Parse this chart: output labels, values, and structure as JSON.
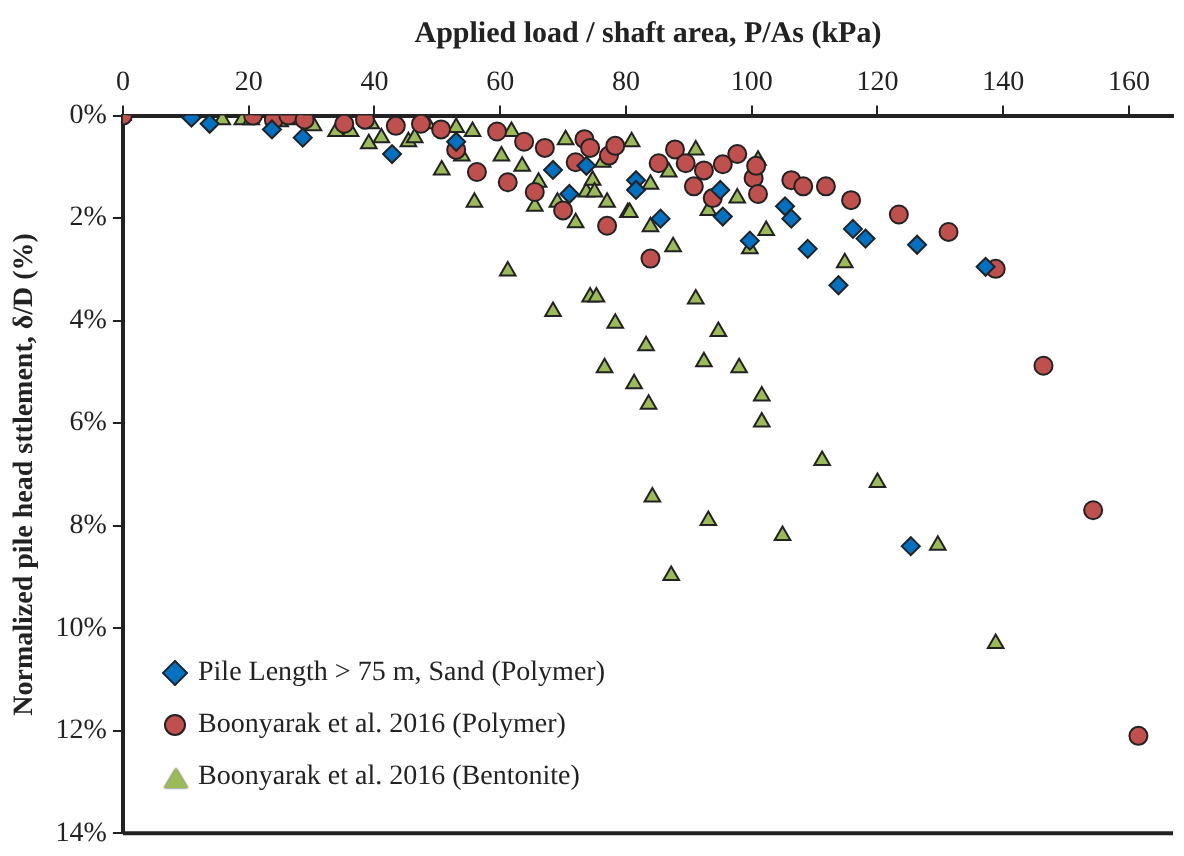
{
  "chart_data": {
    "type": "scatter",
    "xlabel": "Applied load / shaft area, P/As (kPa)",
    "ylabel": "Normalized pile head sttlement, δ/D (%)",
    "xlim": [
      0,
      167
    ],
    "xticks": [
      0,
      20,
      40,
      60,
      80,
      100,
      120,
      140,
      160
    ],
    "ylim": [
      14,
      0
    ],
    "yticks": [
      {
        "value": 0,
        "label": "0%"
      },
      {
        "value": 2,
        "label": "2%"
      },
      {
        "value": 4,
        "label": "4%"
      },
      {
        "value": 6,
        "label": "6%"
      },
      {
        "value": 8,
        "label": "8%"
      },
      {
        "value": 10,
        "label": "10%"
      },
      {
        "value": 12,
        "label": "12%"
      },
      {
        "value": 14,
        "label": "14%"
      }
    ],
    "grid": false,
    "legend": "bottom left",
    "series": [
      {
        "name": "Pile Length > 75 m, Sand (Polymer)",
        "color": "#0070c0",
        "marker": "diamond",
        "x": [
          10.9,
          13.8,
          23.7,
          28.6,
          42.8,
          53,
          68.4,
          71,
          73.7,
          81.6,
          81.6,
          85.5,
          95,
          95.4,
          99.7,
          105.3,
          106.3,
          108.9,
          113.8,
          116.1,
          118.1,
          126.3,
          137.2,
          125.3
        ],
        "values": [
          0.04,
          0.16,
          0.27,
          0.43,
          0.75,
          0.51,
          1.06,
          1.53,
          0.98,
          1.26,
          1.45,
          2.01,
          1.45,
          1.97,
          2.44,
          1.77,
          2.01,
          2.6,
          3.31,
          2.21,
          2.4,
          2.52,
          2.95,
          8.4
        ]
      },
      {
        "name": "Boonyarak et al. 2016 (Polymer)",
        "color": "#c0504d",
        "marker": "circle",
        "x": [
          0,
          20.7,
          24,
          26.3,
          28.9,
          35.2,
          38.5,
          43.4,
          47.4,
          50.6,
          53,
          56.3,
          59.5,
          61.2,
          63.8,
          65.5,
          67.1,
          70,
          72,
          73.4,
          74.3,
          77,
          77.3,
          78.3,
          83.9,
          85.2,
          87.8,
          89.5,
          90.8,
          92.4,
          93.8,
          95.4,
          97.7,
          100.3,
          100.7,
          101,
          106.3,
          108.2,
          111.8,
          115.8,
          123.4,
          131.3,
          138.8,
          146.4,
          154.3,
          161.5
        ],
        "values": [
          0,
          0,
          0.08,
          0,
          0.08,
          0.16,
          0.08,
          0.2,
          0.16,
          0.27,
          0.67,
          1.1,
          0.31,
          1.3,
          0.51,
          1.49,
          0.63,
          1.85,
          0.91,
          0.46,
          0.63,
          2.15,
          0.78,
          0.59,
          2.79,
          0.93,
          0.66,
          0.93,
          1.38,
          1.07,
          1.61,
          0.95,
          0.75,
          1.22,
          0.98,
          1.53,
          1.26,
          1.38,
          1.38,
          1.65,
          1.93,
          2.27,
          2.99,
          4.88,
          7.7,
          12.1
        ]
      },
      {
        "name": "Boonyarak et al. 2016 (Bentonite)",
        "color": "#9bbb59",
        "marker": "triangle",
        "x": [
          0,
          15.8,
          19,
          20.4,
          25,
          28.3,
          30.3,
          33.9,
          36.2,
          39.1,
          39.5,
          41.1,
          45.4,
          46.4,
          48.4,
          50.7,
          53,
          53.9,
          55.6,
          55.9,
          60.2,
          61.2,
          61.8,
          63.5,
          65.5,
          66.1,
          68.4,
          69.1,
          70.4,
          72,
          73.7,
          74.3,
          74.7,
          75,
          75.3,
          76.3,
          76.6,
          77,
          78.3,
          80.3,
          80.6,
          80.9,
          81.3,
          83.2,
          83.6,
          83.9,
          83.9,
          84.2,
          86.8,
          87.2,
          87.5,
          91.1,
          91.1,
          92.4,
          93.1,
          93.1,
          94.7,
          97.7,
          98,
          99.7,
          101,
          101.6,
          101.6,
          102.3,
          104.9,
          111.2,
          114.8,
          120,
          129.6,
          138.8
        ],
        "values": [
          0,
          0.08,
          0.08,
          0.08,
          0.12,
          0.08,
          0.2,
          0.31,
          0.31,
          0.55,
          0.16,
          0.43,
          0.51,
          0.43,
          0.16,
          1.06,
          0.23,
          0.79,
          0.31,
          1.69,
          0.79,
          3.03,
          0.31,
          0.99,
          1.77,
          1.3,
          3.82,
          1.69,
          0.47,
          2.09,
          1.49,
          3.54,
          1.26,
          1.49,
          3.54,
          0.91,
          4.92,
          1.69,
          4.05,
          1.89,
          1.89,
          0.51,
          5.23,
          4.49,
          5.63,
          2.17,
          1.34,
          7.44,
          1.1,
          8.97,
          2.56,
          0.67,
          3.58,
          4.8,
          1.85,
          7.9,
          4.21,
          1.61,
          4.92,
          2.6,
          0.87,
          5.47,
          5.98,
          2.24,
          8.19,
          6.73,
          2.87,
          7.16,
          8.38,
          10.3
        ]
      }
    ]
  }
}
